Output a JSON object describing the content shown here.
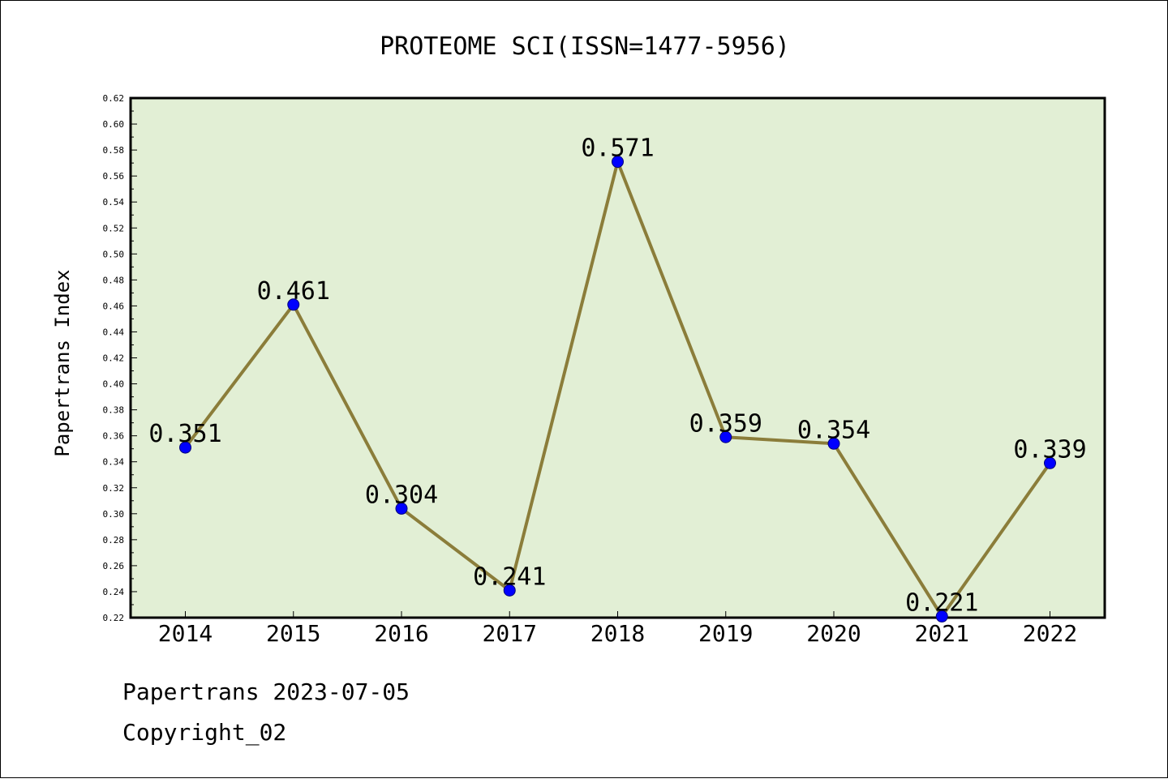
{
  "chart_data": {
    "type": "line",
    "title": "PROTEOME SCI(ISSN=1477-5956)",
    "ylabel": "Papertrans Index",
    "xlabel": "",
    "categories": [
      "2014",
      "2015",
      "2016",
      "2017",
      "2018",
      "2019",
      "2020",
      "2021",
      "2022"
    ],
    "series": [
      {
        "values": [
          0.351,
          0.461,
          0.304,
          0.241,
          0.571,
          0.359,
          0.354,
          0.221,
          0.339
        ],
        "labels": [
          "0.351",
          "0.461",
          "0.304",
          "0.241",
          "0.571",
          "0.359",
          "0.354",
          "0.221",
          "0.339"
        ]
      }
    ],
    "ylim": [
      0.22,
      0.62
    ],
    "yticks": [
      "0.22",
      "0.24",
      "0.26",
      "0.28",
      "0.30",
      "0.32",
      "0.34",
      "0.36",
      "0.38",
      "0.40",
      "0.42",
      "0.44",
      "0.46",
      "0.48",
      "0.50",
      "0.52",
      "0.54",
      "0.56",
      "0.58",
      "0.60",
      "0.62"
    ],
    "grid": false,
    "colors": {
      "plot_background": "#e2efd5",
      "line": "#8b7d3a",
      "marker": "#0000ff"
    }
  },
  "footer": {
    "line1": "Papertrans 2023-07-05",
    "line2": "Copyright_02"
  }
}
